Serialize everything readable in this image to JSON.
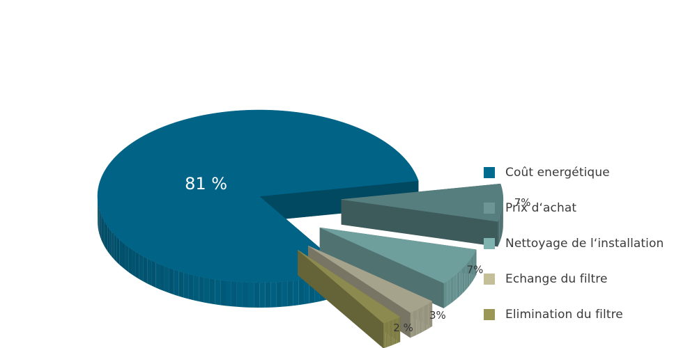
{
  "chart_data": {
    "type": "pie",
    "categories": [
      "Coût energétique",
      "Prix d‘achat",
      "Nettoyage de l‘installation",
      "Echange du filtre",
      "Elimination du filtre"
    ],
    "values": [
      81,
      7,
      7,
      3,
      2
    ],
    "value_labels": [
      "81 %",
      "7%",
      "7%",
      "3%",
      "2 %"
    ],
    "colors": [
      "#016487",
      "#567e7f",
      "#6f9f9d",
      "#a6a38c",
      "#8c8a4e"
    ],
    "legend_colors": [
      "#006b8e",
      "#6d9595",
      "#7fb3b0",
      "#c4bf99",
      "#9a9755"
    ],
    "exploded": true,
    "style": "3d",
    "legend_position": "right"
  }
}
